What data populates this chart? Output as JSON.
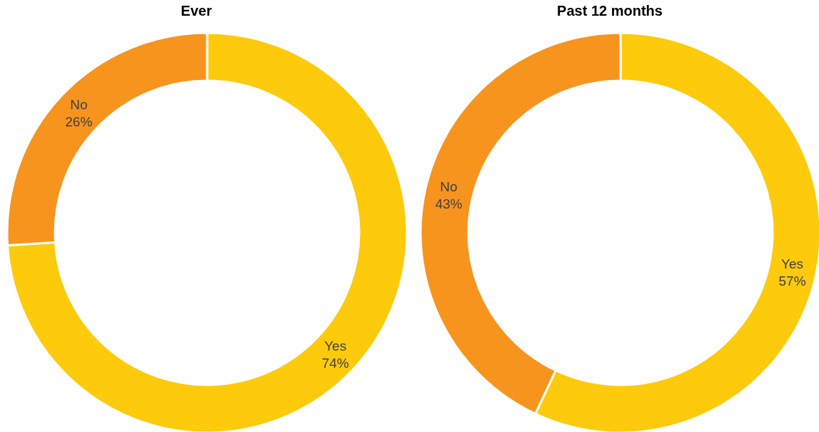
{
  "chart_data": [
    {
      "type": "donut",
      "title": "Ever",
      "categories": [
        "Yes",
        "No"
      ],
      "values": [
        74,
        26
      ],
      "colors": [
        "#fdca0c",
        "#f7941e"
      ],
      "value_labels": [
        "74%",
        "26%"
      ]
    },
    {
      "type": "donut",
      "title": "Past 12 months",
      "categories": [
        "Yes",
        "No"
      ],
      "values": [
        57,
        43
      ],
      "colors": [
        "#fdca0c",
        "#f7941e"
      ],
      "value_labels": [
        "57%",
        "43%"
      ]
    }
  ]
}
